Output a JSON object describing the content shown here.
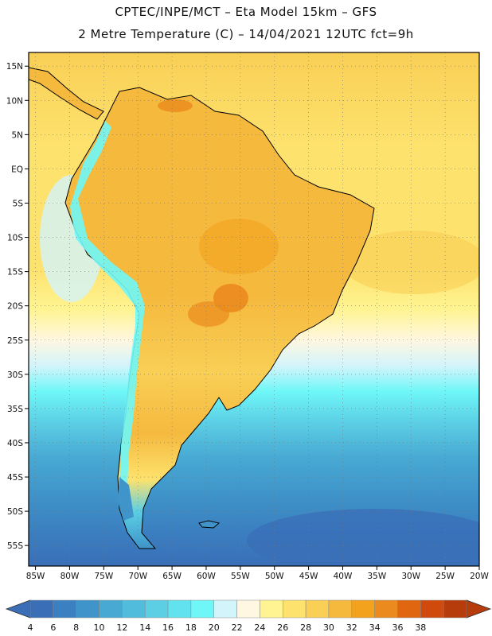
{
  "header": {
    "line1": "CPTEC/INPE/MCT  –  Eta Model 15km – GFS",
    "line2": "2 Metre Temperature (C) – 14/04/2021 12UTC fct=9h"
  },
  "map": {
    "variable": "2 Metre Temperature",
    "units": "C",
    "lat_range": [
      -58,
      17
    ],
    "lon_range": [
      -86,
      -20
    ],
    "lat_labels": [
      "15N",
      "10N",
      "5N",
      "EQ",
      "5S",
      "10S",
      "15S",
      "20S",
      "25S",
      "30S",
      "35S",
      "40S",
      "45S",
      "50S",
      "55S"
    ],
    "lat_values": [
      15,
      10,
      5,
      0,
      -5,
      -10,
      -15,
      -20,
      -25,
      -30,
      -35,
      -40,
      -45,
      -50,
      -55
    ],
    "lon_labels": [
      "85W",
      "80W",
      "75W",
      "70W",
      "65W",
      "60W",
      "55W",
      "50W",
      "45W",
      "40W",
      "35W",
      "30W",
      "25W",
      "20W"
    ],
    "lon_values": [
      -85,
      -80,
      -75,
      -70,
      -65,
      -60,
      -55,
      -50,
      -45,
      -40,
      -35,
      -30,
      -25,
      -20
    ]
  },
  "colorbar": {
    "labels": [
      "4",
      "6",
      "8",
      "10",
      "12",
      "14",
      "16",
      "18",
      "20",
      "22",
      "24",
      "26",
      "28",
      "30",
      "32",
      "34",
      "36",
      "38"
    ],
    "colors": [
      "#3a6fb8",
      "#3b80c0",
      "#3f94c9",
      "#48a9d3",
      "#52bcdc",
      "#5ccfe5",
      "#62e2ee",
      "#6ff7f8",
      "#d3f4fb",
      "#fff7e1",
      "#fff491",
      "#fde26d",
      "#f9cf55",
      "#f5b93e",
      "#f2a21c",
      "#eb8a1e",
      "#e0660f",
      "#cf4a0c",
      "#b63c0c"
    ],
    "under_color": "#3a6fb8",
    "over_color": "#b63c0c"
  },
  "colors": {
    "ocean_north": "#fde26d",
    "ocean_south": "#3b80c0",
    "land": "#f9cf55",
    "andes": "#6ff7f8",
    "hot": "#eb8a1e",
    "coast": "#000000"
  }
}
